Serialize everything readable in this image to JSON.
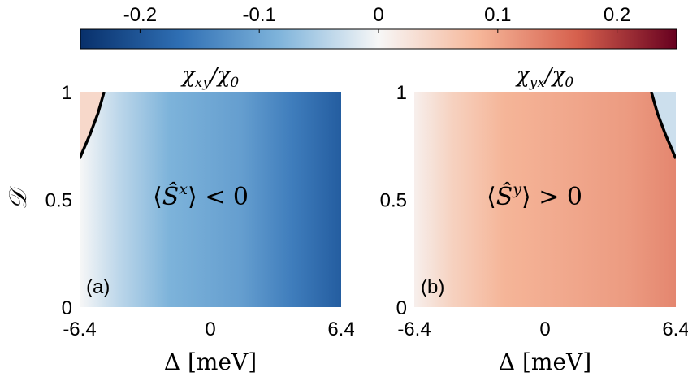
{
  "colorbar": {
    "ticks": [
      "-0.2",
      "-0.1",
      "0",
      "0.1",
      "0.2"
    ],
    "tick_values": [
      -0.2,
      -0.1,
      0,
      0.1,
      0.2
    ],
    "range": [
      -0.25,
      0.25
    ],
    "colormap": [
      "#08306b",
      "#2f6fb4",
      "#7fb4db",
      "#f7f7f7",
      "#f6b79a",
      "#d6604d",
      "#67001f"
    ]
  },
  "chart_data": [
    {
      "type": "heatmap",
      "panel_label": "(a)",
      "title": "χxy/χ0",
      "xlabel": "Δ [meV]",
      "ylabel": "𝒟",
      "xlim": [
        -6.4,
        6.4
      ],
      "ylim": [
        0,
        1
      ],
      "x_ticks": [
        "-6.4",
        "0",
        "6.4"
      ],
      "y_ticks": [
        "0",
        "0.5",
        "1"
      ],
      "annotation": "⟨Ŝx⟩ < 0",
      "color_gradient": [
        {
          "x": -6.4,
          "value": 0.0
        },
        {
          "x": -4.5,
          "value": -0.04
        },
        {
          "x": -2.0,
          "value": -0.085
        },
        {
          "x": 1.5,
          "value": -0.11
        },
        {
          "x": 4.0,
          "value": -0.15
        },
        {
          "x": 6.4,
          "value": -0.19
        }
      ],
      "sign_change_curve": [
        {
          "x": -5.2,
          "y": 1.0
        },
        {
          "x": -5.5,
          "y": 0.9
        },
        {
          "x": -5.9,
          "y": 0.8
        },
        {
          "x": -6.4,
          "y": 0.69
        }
      ],
      "corner_value": 0.04
    },
    {
      "type": "heatmap",
      "panel_label": "(b)",
      "title": "χyx/χ0",
      "xlabel": "Δ [meV]",
      "ylabel": "",
      "xlim": [
        -6.4,
        6.4
      ],
      "ylim": [
        0,
        1
      ],
      "x_ticks": [
        "-6.4",
        "0",
        "6.4"
      ],
      "y_ticks": [
        "0",
        "0.5",
        "1"
      ],
      "annotation": "⟨Ŝy⟩ > 0",
      "color_gradient": [
        {
          "x": -6.4,
          "value": 0.01
        },
        {
          "x": -4.5,
          "value": 0.05
        },
        {
          "x": -2.0,
          "value": 0.085
        },
        {
          "x": 1.5,
          "value": 0.1
        },
        {
          "x": 4.0,
          "value": 0.11
        },
        {
          "x": 6.4,
          "value": 0.13
        }
      ],
      "sign_change_curve": [
        {
          "x": 5.2,
          "y": 1.0
        },
        {
          "x": 5.5,
          "y": 0.9
        },
        {
          "x": 5.9,
          "y": 0.8
        },
        {
          "x": 6.4,
          "y": 0.69
        }
      ],
      "corner_value": -0.03
    }
  ]
}
